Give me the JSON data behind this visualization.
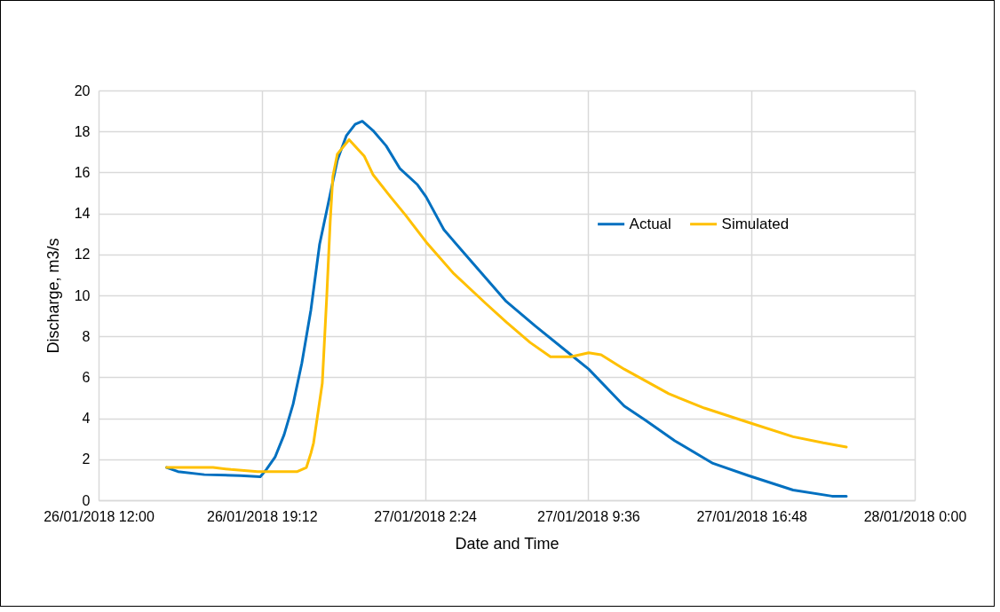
{
  "chart_data": {
    "type": "line",
    "xlabel": "Date and Time",
    "ylabel": "Discharge, m3/s",
    "xlim": [
      "2018-01-26T12:00",
      "2018-01-28T00:00"
    ],
    "xticks": [
      {
        "value": "2018-01-26T12:00",
        "label": "26/01/2018 12:00"
      },
      {
        "value": "2018-01-26T19:12",
        "label": "26/01/2018 19:12"
      },
      {
        "value": "2018-01-27T02:24",
        "label": "27/01/2018 2:24"
      },
      {
        "value": "2018-01-27T09:36",
        "label": "27/01/2018 9:36"
      },
      {
        "value": "2018-01-27T16:48",
        "label": "27/01/2018 16:48"
      },
      {
        "value": "2018-01-28T00:00",
        "label": "28/01/2018 0:00"
      }
    ],
    "ylim": [
      0,
      20
    ],
    "yticks": [
      0,
      2,
      4,
      6,
      8,
      10,
      12,
      14,
      16,
      18,
      20
    ],
    "grid": true,
    "legend": "right",
    "marker": "none",
    "line_style": "solid",
    "series": [
      {
        "name": "Actual",
        "color": "#0070c0",
        "x": [
          "2018-01-26T15:00",
          "2018-01-26T15:30",
          "2018-01-26T16:40",
          "2018-01-26T18:15",
          "2018-01-26T19:08",
          "2018-01-26T19:24",
          "2018-01-26T19:47",
          "2018-01-26T20:11",
          "2018-01-26T20:35",
          "2018-01-26T20:58",
          "2018-01-26T21:22",
          "2018-01-26T21:45",
          "2018-01-26T22:08",
          "2018-01-26T22:32",
          "2018-01-26T22:56",
          "2018-01-26T23:19",
          "2018-01-26T23:38",
          "2018-01-27T00:06",
          "2018-01-27T00:41",
          "2018-01-27T01:17",
          "2018-01-27T02:04",
          "2018-01-27T02:27",
          "2018-01-27T03:14",
          "2018-01-27T04:01",
          "2018-01-27T05:59",
          "2018-01-27T07:16",
          "2018-01-27T08:50",
          "2018-01-27T09:37",
          "2018-01-27T11:11",
          "2018-01-27T12:08",
          "2018-01-27T13:25",
          "2018-01-27T15:06",
          "2018-01-27T16:40",
          "2018-01-27T18:38",
          "2018-01-27T20:21",
          "2018-01-27T20:59"
        ],
        "values": [
          1.6,
          1.4,
          1.25,
          1.2,
          1.15,
          1.5,
          2.1,
          3.2,
          4.7,
          6.7,
          9.3,
          12.5,
          14.5,
          16.6,
          17.8,
          18.35,
          18.5,
          18.05,
          17.3,
          16.2,
          15.4,
          14.8,
          13.2,
          12.2,
          9.7,
          8.5,
          7.1,
          6.4,
          4.6,
          3.9,
          2.9,
          1.8,
          1.2,
          0.5,
          0.2,
          0.2
        ]
      },
      {
        "name": "Simulated",
        "color": "#ffc000",
        "x": [
          "2018-01-26T15:00",
          "2018-01-26T17:03",
          "2018-01-26T17:50",
          "2018-01-26T19:01",
          "2018-01-26T20:46",
          "2018-01-26T21:10",
          "2018-01-26T21:22",
          "2018-01-26T21:29",
          "2018-01-26T21:52",
          "2018-01-26T22:04",
          "2018-01-26T22:13",
          "2018-01-26T22:20",
          "2018-01-26T22:32",
          "2018-01-26T23:03",
          "2018-01-26T23:43",
          "2018-01-27T00:06",
          "2018-01-27T00:53",
          "2018-01-27T01:33",
          "2018-01-27T02:27",
          "2018-01-27T03:38",
          "2018-01-27T05:05",
          "2018-01-27T05:59",
          "2018-01-27T07:02",
          "2018-01-27T07:56",
          "2018-01-27T08:50",
          "2018-01-27T09:37",
          "2018-01-27T10:10",
          "2018-01-27T11:11",
          "2018-01-27T13:09",
          "2018-01-27T14:43",
          "2018-01-27T16:40",
          "2018-01-27T18:38",
          "2018-01-27T19:58",
          "2018-01-27T20:59"
        ],
        "values": [
          1.6,
          1.6,
          1.5,
          1.4,
          1.4,
          1.6,
          2.3,
          2.8,
          5.7,
          10.0,
          13.6,
          15.8,
          16.9,
          17.6,
          16.8,
          15.9,
          14.8,
          13.9,
          12.6,
          11.1,
          9.6,
          8.7,
          7.7,
          7.0,
          7.0,
          7.2,
          7.1,
          6.4,
          5.2,
          4.5,
          3.8,
          3.1,
          2.8,
          2.6
        ]
      }
    ]
  }
}
